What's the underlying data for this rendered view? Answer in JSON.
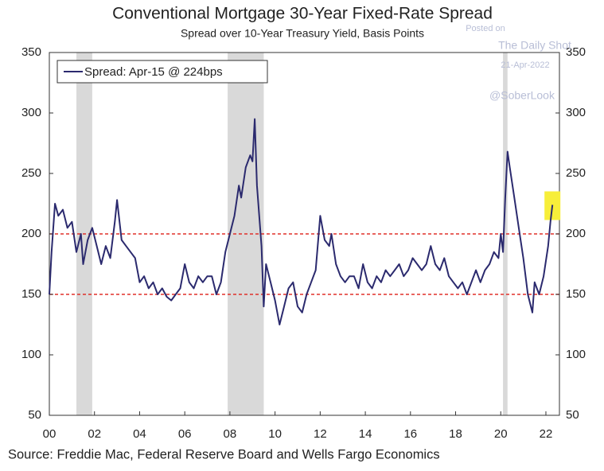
{
  "chart_data": {
    "type": "line",
    "title": "Conventional Mortgage 30-Year Fixed-Rate Spread",
    "subtitle": "Spread over 10-Year Treasury Yield, Basis Points",
    "source": "Source: Freddie Mac, Federal Reserve Board and Wells Fargo Economics",
    "watermark": [
      "Posted on",
      "The Daily Shot",
      "21-Apr-2022",
      "@SoberLook"
    ],
    "x": [
      2000.0,
      2000.1,
      2000.25,
      2000.4,
      2000.6,
      2000.8,
      2001.0,
      2001.2,
      2001.4,
      2001.5,
      2001.7,
      2001.9,
      2002.1,
      2002.3,
      2002.5,
      2002.7,
      2002.9,
      2003.0,
      2003.2,
      2003.4,
      2003.6,
      2003.8,
      2004.0,
      2004.2,
      2004.4,
      2004.6,
      2004.8,
      2005.0,
      2005.2,
      2005.4,
      2005.6,
      2005.8,
      2006.0,
      2006.2,
      2006.4,
      2006.6,
      2006.8,
      2007.0,
      2007.2,
      2007.4,
      2007.6,
      2007.8,
      2008.0,
      2008.2,
      2008.4,
      2008.5,
      2008.7,
      2008.9,
      2009.0,
      2009.1,
      2009.2,
      2009.4,
      2009.5,
      2009.6,
      2009.8,
      2010.0,
      2010.2,
      2010.4,
      2010.6,
      2010.8,
      2011.0,
      2011.2,
      2011.4,
      2011.6,
      2011.8,
      2012.0,
      2012.2,
      2012.4,
      2012.5,
      2012.7,
      2012.9,
      2013.1,
      2013.3,
      2013.5,
      2013.7,
      2013.9,
      2014.1,
      2014.3,
      2014.5,
      2014.7,
      2014.9,
      2015.1,
      2015.3,
      2015.5,
      2015.7,
      2015.9,
      2016.1,
      2016.3,
      2016.5,
      2016.7,
      2016.9,
      2017.1,
      2017.3,
      2017.5,
      2017.7,
      2017.9,
      2018.1,
      2018.3,
      2018.5,
      2018.7,
      2018.9,
      2019.1,
      2019.3,
      2019.5,
      2019.7,
      2019.9,
      2020.0,
      2020.1,
      2020.2,
      2020.3,
      2020.4,
      2020.6,
      2020.8,
      2021.0,
      2021.2,
      2021.4,
      2021.5,
      2021.7,
      2021.9,
      2022.1,
      2022.2,
      2022.29
    ],
    "series": [
      {
        "name": "Spread: Apr-15 @ 224bps",
        "color": "#2b2a6e",
        "values": [
          150,
          185,
          225,
          215,
          220,
          205,
          210,
          185,
          200,
          175,
          195,
          205,
          190,
          175,
          190,
          180,
          210,
          228,
          195,
          190,
          185,
          180,
          160,
          165,
          155,
          160,
          150,
          155,
          148,
          145,
          150,
          155,
          175,
          160,
          155,
          165,
          160,
          165,
          165,
          150,
          160,
          185,
          200,
          215,
          240,
          230,
          255,
          265,
          260,
          295,
          240,
          190,
          140,
          175,
          160,
          145,
          125,
          140,
          155,
          160,
          140,
          135,
          150,
          160,
          170,
          215,
          195,
          190,
          200,
          175,
          165,
          160,
          165,
          165,
          155,
          175,
          160,
          155,
          165,
          160,
          170,
          165,
          170,
          175,
          165,
          170,
          180,
          175,
          170,
          175,
          190,
          175,
          170,
          180,
          165,
          160,
          155,
          160,
          150,
          160,
          170,
          160,
          170,
          175,
          185,
          180,
          200,
          185,
          230,
          268,
          255,
          230,
          205,
          180,
          150,
          135,
          160,
          150,
          165,
          190,
          210,
          224
        ]
      }
    ],
    "shaded_periods": [
      [
        2001.2,
        2001.9
      ],
      [
        2007.9,
        2009.5
      ],
      [
        2020.1,
        2020.3
      ]
    ],
    "reference_lines": [
      150,
      200
    ],
    "xlim": [
      2000,
      2022.6
    ],
    "xticks": [
      {
        "value": 2000,
        "label": "00"
      },
      {
        "value": 2002,
        "label": "02"
      },
      {
        "value": 2004,
        "label": "04"
      },
      {
        "value": 2006,
        "label": "06"
      },
      {
        "value": 2008,
        "label": "08"
      },
      {
        "value": 2010,
        "label": "10"
      },
      {
        "value": 2012,
        "label": "12"
      },
      {
        "value": 2014,
        "label": "14"
      },
      {
        "value": 2016,
        "label": "16"
      },
      {
        "value": 2018,
        "label": "18"
      },
      {
        "value": 2020,
        "label": "20"
      },
      {
        "value": 2022,
        "label": "22"
      }
    ],
    "ylim": [
      50,
      350
    ],
    "yticks": [
      50,
      100,
      150,
      200,
      250,
      300,
      350
    ],
    "y2lim": [
      50,
      350
    ],
    "y2ticks": [
      50,
      100,
      150,
      200,
      250,
      300,
      350
    ],
    "legend": "upper left"
  }
}
